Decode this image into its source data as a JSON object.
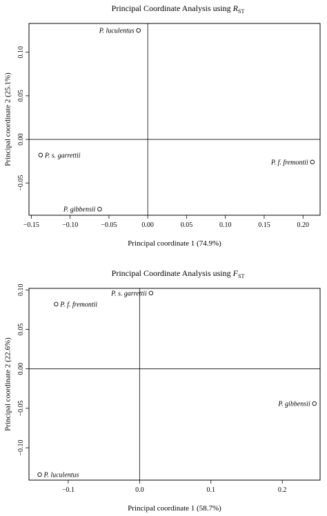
{
  "chart_data": [
    {
      "type": "scatter",
      "title": "Principal Coordinate Analysis using ",
      "title_symbol": "R",
      "title_subscript": "ST",
      "xlabel": "Principal coordinate 1 (74.9%)",
      "ylabel": "Principal coordinate 2 (25.1%)",
      "xlim": [
        -0.153,
        0.222
      ],
      "ylim": [
        -0.087,
        0.133
      ],
      "xticks": [
        -0.15,
        -0.1,
        -0.05,
        0.0,
        0.05,
        0.1,
        0.15,
        0.2
      ],
      "xtick_labels": [
        "−0.15",
        "−0.10",
        "−0.05",
        "0.00",
        "0.05",
        "0.10",
        "0.15",
        "0.20"
      ],
      "yticks": [
        -0.05,
        0.0,
        0.05,
        0.1
      ],
      "ytick_labels": [
        "−0.05",
        "0.00",
        "0.05",
        "0.10"
      ],
      "reference_lines": {
        "x": 0,
        "y": 0
      },
      "points": [
        {
          "label": "P. luculentus",
          "x": -0.012,
          "y": 0.125,
          "label_side": "left"
        },
        {
          "label": "P. s. garrettii",
          "x": -0.138,
          "y": -0.018,
          "label_side": "right"
        },
        {
          "label": "P. f. fremontii",
          "x": 0.212,
          "y": -0.026,
          "label_side": "left"
        },
        {
          "label": "P. gibbensii",
          "x": -0.062,
          "y": -0.08,
          "label_side": "left"
        }
      ]
    },
    {
      "type": "scatter",
      "title": "Principal Coordinate Analysis using ",
      "title_symbol": "F",
      "title_subscript": "ST",
      "xlabel": "Principal coordinate 1 (58.7%)",
      "ylabel": "Principal coordinate 2 (22.6%)",
      "xlim": [
        -0.155,
        0.253
      ],
      "ylim": [
        -0.141,
        0.102
      ],
      "xticks": [
        -0.1,
        0.0,
        0.1,
        0.2
      ],
      "xtick_labels": [
        "−0.1",
        "0.0",
        "0.1",
        "0.2"
      ],
      "yticks": [
        -0.1,
        -0.05,
        0.0,
        0.05,
        0.1
      ],
      "ytick_labels": [
        "−0.10",
        "−0.05",
        "0.00",
        "0.05",
        "0.10"
      ],
      "reference_lines": {
        "x": 0,
        "y": 0
      },
      "points": [
        {
          "label": "P. s. garrettii",
          "x": 0.016,
          "y": 0.096,
          "label_side": "left"
        },
        {
          "label": "P. f. fremontii",
          "x": -0.117,
          "y": 0.082,
          "label_side": "right"
        },
        {
          "label": "P. gibbensii",
          "x": 0.245,
          "y": -0.044,
          "label_side": "left"
        },
        {
          "label": "P. luculentus",
          "x": -0.14,
          "y": -0.134,
          "label_side": "right"
        }
      ]
    }
  ]
}
